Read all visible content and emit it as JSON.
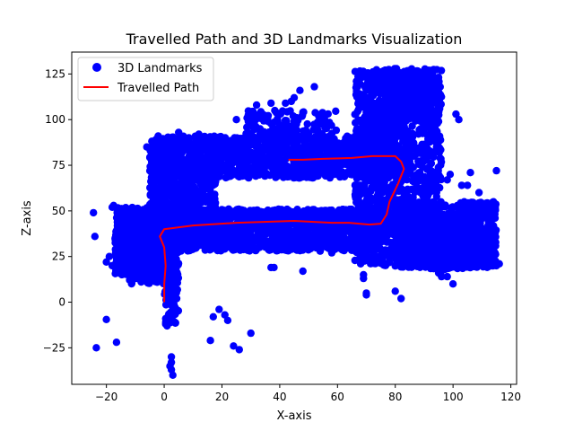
{
  "chart_data": {
    "type": "scatter",
    "title": "Travelled Path and 3D Landmarks Visualization",
    "xlabel": "X-axis",
    "ylabel": "Z-axis",
    "xlim": [
      -32,
      122
    ],
    "ylim": [
      -45,
      137
    ],
    "xticks": [
      -20,
      0,
      20,
      40,
      60,
      80,
      100,
      120
    ],
    "yticks": [
      -25,
      0,
      25,
      50,
      75,
      100,
      125
    ],
    "grid": false,
    "legend_position": "upper-left",
    "legend": [
      {
        "label": "3D Landmarks",
        "marker": "circle",
        "color": "#0000ff"
      },
      {
        "label": "Travelled Path",
        "marker": "line",
        "color": "#ff0000"
      }
    ],
    "series": [
      {
        "name": "Travelled Path",
        "kind": "line",
        "color": "#ff0000",
        "x": [
          0,
          0,
          0.5,
          0,
          -1.5,
          0,
          10,
          25,
          45,
          58,
          64,
          71,
          75,
          77,
          78,
          81,
          83,
          82,
          80,
          78,
          72,
          65,
          55,
          48,
          43
        ],
        "y": [
          0,
          10,
          20,
          30,
          36,
          40,
          42,
          43.5,
          44.5,
          43.5,
          43.5,
          42.5,
          43,
          48,
          55,
          65,
          73,
          77,
          80,
          80,
          80,
          79,
          78.5,
          78,
          78
        ]
      },
      {
        "name": "3D Landmarks",
        "kind": "scatter",
        "color": "#0000ff",
        "regions": [
          {
            "x": [
              -17,
              5
            ],
            "y": [
              15,
              52
            ],
            "n": 900
          },
          {
            "x": [
              -12,
              0
            ],
            "y": [
              10,
              45
            ],
            "n": 300
          },
          {
            "x": [
              -5,
              80
            ],
            "y": [
              68,
              91
            ],
            "n": 1300
          },
          {
            "x": [
              0,
              75
            ],
            "y": [
              28,
              51
            ],
            "n": 1400
          },
          {
            "x": [
              -5,
              18
            ],
            "y": [
              50,
              80
            ],
            "n": 400
          },
          {
            "x": [
              66,
              96
            ],
            "y": [
              20,
              128
            ],
            "n": 1300
          },
          {
            "x": [
              76,
              94
            ],
            "y": [
              100,
              128
            ],
            "n": 400
          },
          {
            "x": [
              80,
              115
            ],
            "y": [
              19,
              55
            ],
            "n": 700
          },
          {
            "x": [
              88,
              114
            ],
            "y": [
              18,
              38
            ],
            "n": 350
          },
          {
            "x": [
              28,
              60
            ],
            "y": [
              90,
              105
            ],
            "n": 120
          },
          {
            "x": [
              0,
              5
            ],
            "y": [
              -12,
              28
            ],
            "n": 90
          }
        ],
        "points": [
          [
            -24.5,
            49
          ],
          [
            -24,
            36
          ],
          [
            -23.5,
            -25
          ],
          [
            -20,
            22
          ],
          [
            -20,
            -9.5
          ],
          [
            -18,
            52
          ],
          [
            -17.5,
            53
          ],
          [
            -17,
            35
          ],
          [
            -16.5,
            -22
          ],
          [
            -18,
            20
          ],
          [
            -19,
            25
          ],
          [
            -15,
            41
          ],
          [
            0.5,
            -9
          ],
          [
            0.5,
            -12
          ],
          [
            1,
            -13
          ],
          [
            2.5,
            -30
          ],
          [
            2.5,
            -33
          ],
          [
            2.5,
            -37
          ],
          [
            3,
            -40
          ],
          [
            2,
            -35
          ],
          [
            16,
            -21
          ],
          [
            17,
            -8
          ],
          [
            19,
            -4
          ],
          [
            21,
            -7
          ],
          [
            22,
            -10
          ],
          [
            24,
            -24
          ],
          [
            26,
            -26
          ],
          [
            30,
            -17
          ],
          [
            -6,
            85
          ],
          [
            -4,
            86
          ],
          [
            0,
            88
          ],
          [
            5,
            93
          ],
          [
            12,
            92
          ],
          [
            16,
            90
          ],
          [
            25,
            100
          ],
          [
            32,
            108
          ],
          [
            37,
            109
          ],
          [
            42,
            109
          ],
          [
            44,
            110
          ],
          [
            45,
            112
          ],
          [
            47,
            116
          ],
          [
            52,
            118
          ],
          [
            55,
            103
          ],
          [
            48,
            104
          ],
          [
            36,
            99
          ],
          [
            40,
            97
          ],
          [
            54,
            28
          ],
          [
            48,
            17
          ],
          [
            37,
            19
          ],
          [
            38,
            19
          ],
          [
            24,
            34
          ],
          [
            33,
            30
          ],
          [
            58,
            27
          ],
          [
            72,
            72
          ],
          [
            70,
            5
          ],
          [
            70,
            4
          ],
          [
            69,
            13
          ],
          [
            69,
            15
          ],
          [
            68,
            21
          ],
          [
            80,
            6
          ],
          [
            82,
            2
          ],
          [
            101,
            103
          ],
          [
            102,
            100
          ],
          [
            106,
            71
          ],
          [
            109,
            60
          ],
          [
            111,
            54
          ],
          [
            112,
            54
          ],
          [
            114,
            55
          ],
          [
            115,
            72
          ],
          [
            101,
            52
          ],
          [
            103,
            47
          ],
          [
            104,
            47
          ],
          [
            98,
            14
          ],
          [
            96,
            14
          ],
          [
            95,
            16
          ],
          [
            96,
            17
          ],
          [
            100,
            10
          ],
          [
            112,
            21
          ],
          [
            113,
            22
          ],
          [
            114,
            24
          ],
          [
            115,
            20
          ],
          [
            116,
            21
          ],
          [
            99,
            70
          ],
          [
            98,
            67
          ],
          [
            90,
            66
          ],
          [
            92,
            68
          ],
          [
            103,
            64
          ],
          [
            105,
            64
          ]
        ]
      }
    ]
  }
}
